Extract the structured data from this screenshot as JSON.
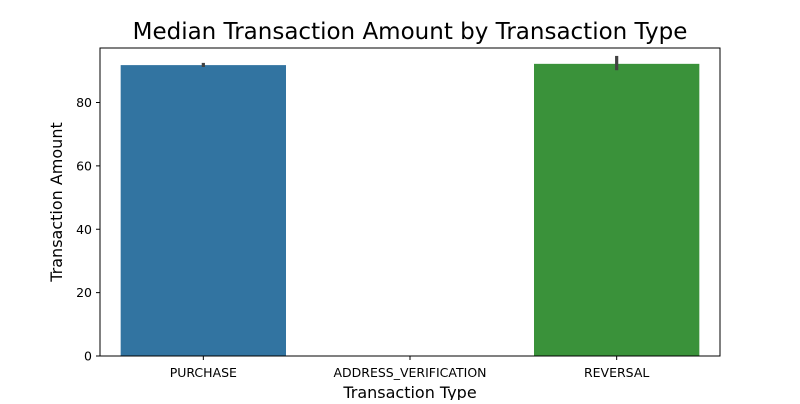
{
  "chart_data": {
    "type": "bar",
    "title": "Median Transaction Amount by Transaction Type",
    "xlabel": "Transaction Type",
    "ylabel": "Transaction Amount",
    "categories": [
      "PURCHASE",
      "ADDRESS_VERIFICATION",
      "REVERSAL"
    ],
    "values": [
      91.8,
      0,
      92.2
    ],
    "error_low": [
      91.2,
      0,
      90.2
    ],
    "error_high": [
      92.5,
      0,
      94.7
    ],
    "colors": [
      "#3274a1",
      "#e1812c",
      "#3a923a"
    ],
    "error_color": "#424242",
    "ylim": [
      0,
      97.2
    ],
    "yticks": [
      0,
      20,
      40,
      60,
      80
    ],
    "grid": false,
    "legend": "none"
  }
}
